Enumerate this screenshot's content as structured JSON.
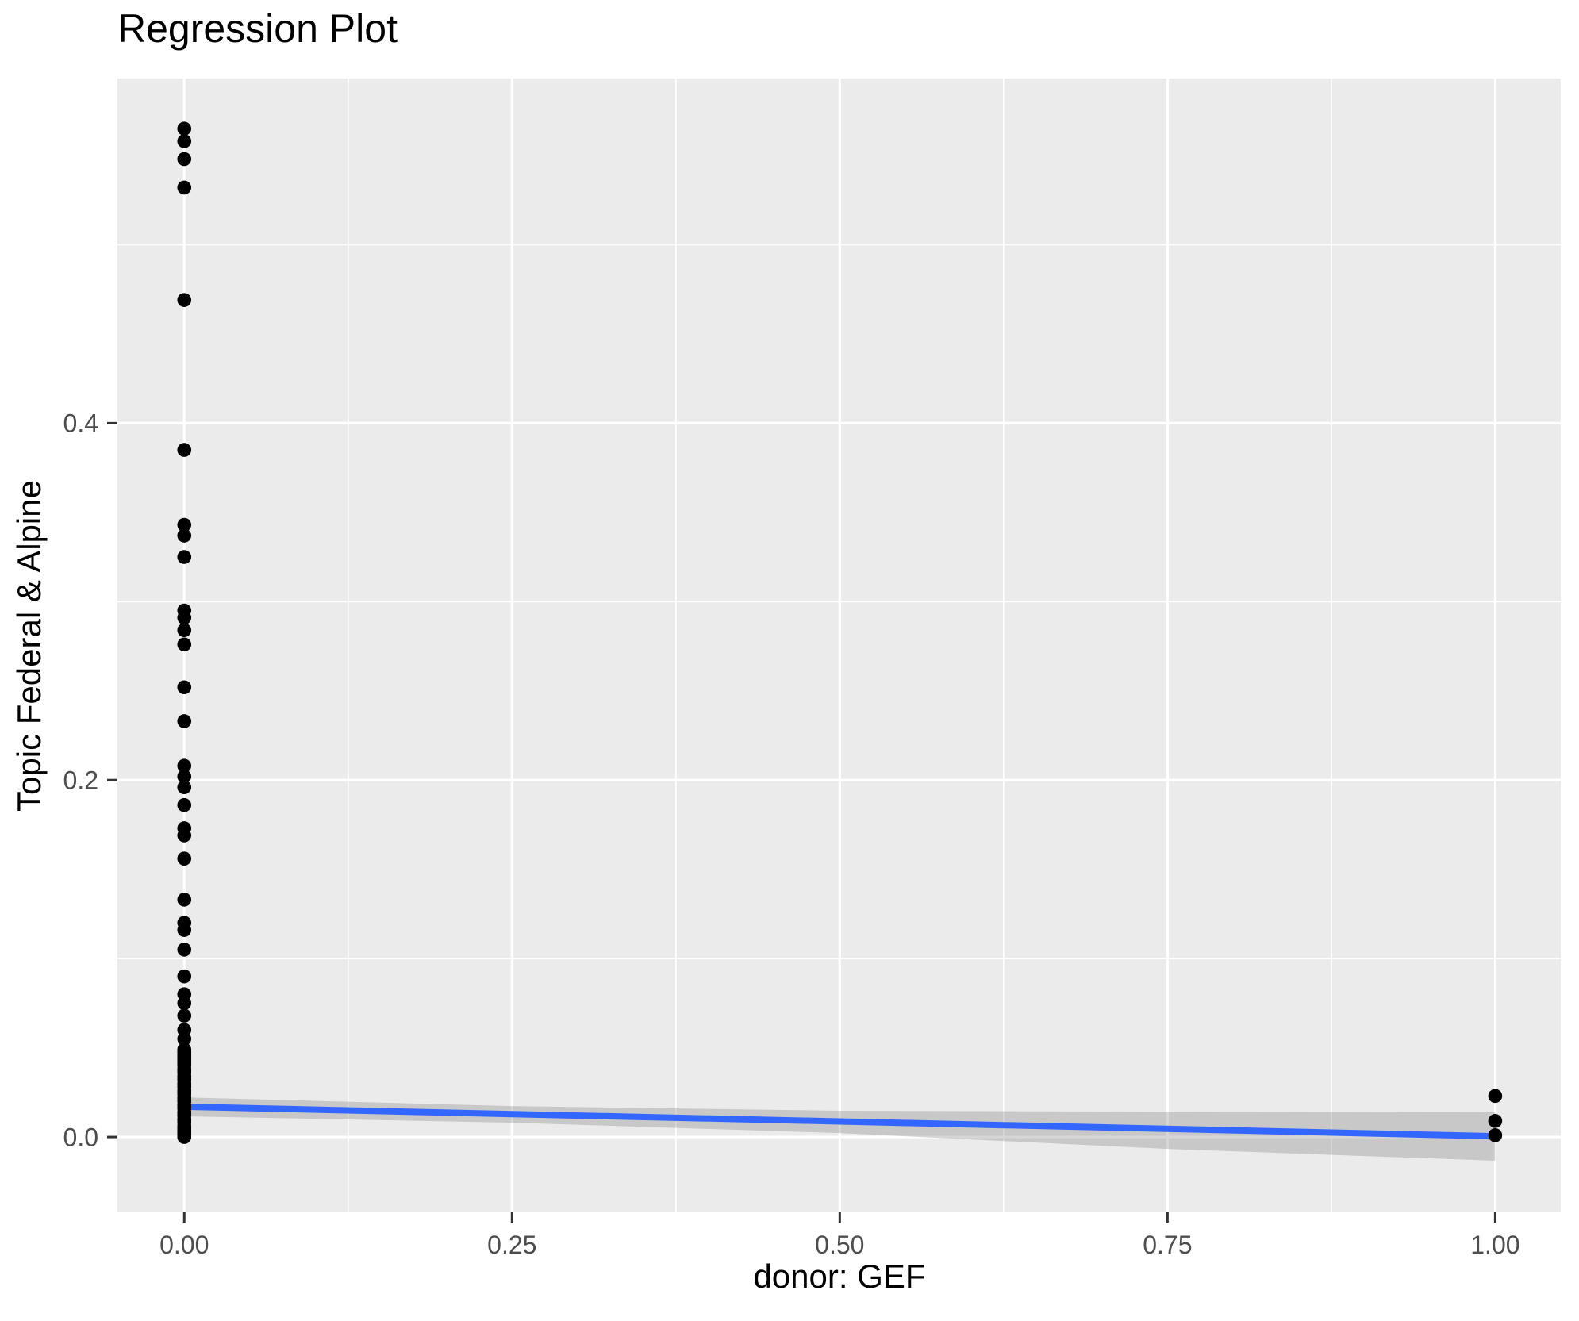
{
  "chart_data": {
    "type": "scatter",
    "title": "Regression Plot",
    "xlabel": "donor: GEF",
    "ylabel": "Topic Federal & Alpine",
    "legend": "none",
    "grid": "white major and minor gridlines on gray panel",
    "xlim": [
      -0.051,
      1.05
    ],
    "ylim": [
      -0.0422,
      0.5931
    ],
    "x_ticks": [
      {
        "value": 0.0,
        "label": "0.00"
      },
      {
        "value": 0.25,
        "label": "0.25"
      },
      {
        "value": 0.5,
        "label": "0.50"
      },
      {
        "value": 0.75,
        "label": "0.75"
      },
      {
        "value": 1.0,
        "label": "1.00"
      }
    ],
    "y_ticks": [
      {
        "value": 0.0,
        "label": "0.0"
      },
      {
        "value": 0.2,
        "label": "0.2"
      },
      {
        "value": 0.4,
        "label": "0.4"
      }
    ],
    "x_minor_breaks": [
      0.125,
      0.375,
      0.625,
      0.875
    ],
    "y_minor_breaks": [
      0.1,
      0.3,
      0.5
    ],
    "series": [
      {
        "name": "observations",
        "type": "scatter",
        "color": "#000000",
        "point_radius": 8.8,
        "groups": [
          {
            "x": 0,
            "y_values": [
              0.565,
              0.558,
              0.548,
              0.532,
              0.469,
              0.385,
              0.343,
              0.337,
              0.325,
              0.295,
              0.291,
              0.284,
              0.276,
              0.252,
              0.233,
              0.208,
              0.202,
              0.196,
              0.186,
              0.173,
              0.169,
              0.156,
              0.133,
              0.12,
              0.116,
              0.105,
              0.09,
              0.08,
              0.075,
              0.068,
              0.06,
              0.055,
              0.049,
              0.048,
              0.047,
              0.046,
              0.045,
              0.044,
              0.043,
              0.042,
              0.041,
              0.04,
              0.038,
              0.037,
              0.036,
              0.034,
              0.033,
              0.032,
              0.03,
              0.029,
              0.028,
              0.026,
              0.025,
              0.024,
              0.022,
              0.021,
              0.02,
              0.018,
              0.017,
              0.016,
              0.014,
              0.013,
              0.012,
              0.01,
              0.009,
              0.008,
              0.006,
              0.005,
              0.004,
              0.003,
              0.002,
              0.001,
              0.0
            ]
          },
          {
            "x": 1,
            "y_values": [
              0.023,
              0.009,
              0.001
            ]
          }
        ]
      },
      {
        "name": "linear-fit",
        "type": "line",
        "color": "#3366FF",
        "width": 8,
        "x": [
          0,
          1
        ],
        "y": [
          0.017,
          0.0004
        ]
      },
      {
        "name": "confidence-band",
        "type": "area",
        "color": "#808080",
        "opacity": 0.32,
        "x": [
          0.0,
          0.25,
          0.5,
          0.75,
          1.0
        ],
        "upper": [
          0.0222,
          0.0173,
          0.0147,
          0.0142,
          0.0138
        ],
        "lower": [
          0.0116,
          0.008,
          0.0022,
          -0.0067,
          -0.0133
        ]
      }
    ],
    "colors": {
      "page_background": "#FFFFFF",
      "panel_background": "#EBEBEB",
      "gridline": "#FFFFFF",
      "point": "#000000",
      "smooth_line": "#3366FF",
      "band_rendered": "#C9C9C9",
      "tick_label": "#4D4D4D",
      "tick_mark": "#333333",
      "axis_title": "#000000",
      "title": "#000000"
    }
  }
}
